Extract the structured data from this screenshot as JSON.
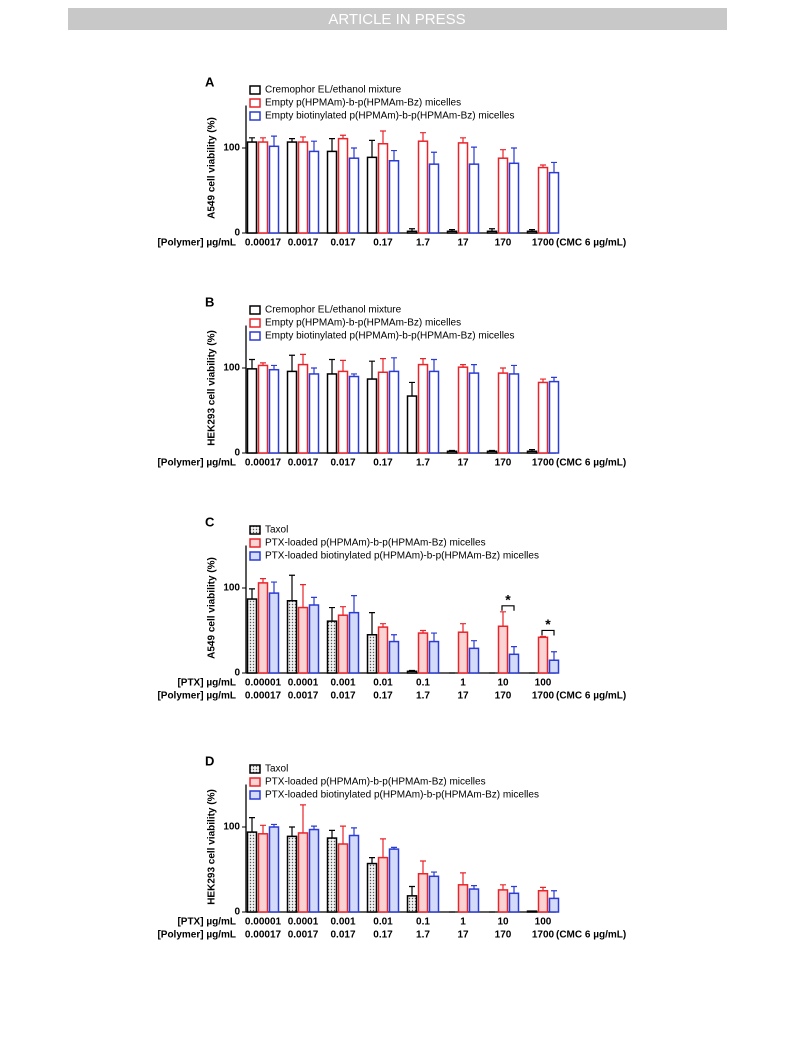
{
  "header": {
    "banner": "ARTICLE IN PRESS"
  },
  "chart_data": [
    {
      "type": "bar",
      "panel": "A",
      "ylabel": "A549 cell viability (%)",
      "ylim": [
        0,
        150
      ],
      "yticks": [
        0,
        100
      ],
      "x_label": "[Polymer] µg/mL",
      "categories": [
        "0.00017",
        "0.0017",
        "0.017",
        "0.17",
        "1.7",
        "17",
        "170",
        "1700"
      ],
      "x_note": "(CMC 6 µg/mL)",
      "series": [
        {
          "name": "Cremophor EL/ethanol mixture",
          "color": "#000000",
          "fill": "#ffffff",
          "values": [
            107,
            107,
            96,
            89,
            2,
            2,
            2,
            2
          ],
          "errors": [
            5,
            4,
            15,
            20,
            3,
            2,
            3,
            2
          ]
        },
        {
          "name": "Empty p(HPMAm)-b-p(HPMAm-Bz) micelles",
          "color": "#e8242b",
          "fill": "#ffffff",
          "values": [
            107,
            107,
            111,
            105,
            108,
            106,
            88,
            77
          ],
          "errors": [
            5,
            6,
            4,
            15,
            10,
            6,
            10,
            3
          ]
        },
        {
          "name": "Empty biotinylated p(HPMAm)-b-p(HPMAm-Bz) micelles",
          "color": "#2a3bd6",
          "fill": "#ffffff",
          "values": [
            102,
            96,
            88,
            85,
            81,
            81,
            82,
            71
          ],
          "errors": [
            12,
            12,
            12,
            12,
            14,
            20,
            18,
            12
          ]
        }
      ]
    },
    {
      "type": "bar",
      "panel": "B",
      "ylabel": "HEK293 cell viability (%)",
      "ylim": [
        0,
        150
      ],
      "yticks": [
        0,
        100
      ],
      "x_label": "[Polymer] µg/mL",
      "categories": [
        "0.00017",
        "0.0017",
        "0.017",
        "0.17",
        "1.7",
        "17",
        "170",
        "1700"
      ],
      "x_note": "(CMC 6 µg/mL)",
      "series": [
        {
          "name": "Cremophor EL/ethanol mixture",
          "color": "#000000",
          "fill": "#ffffff",
          "values": [
            99,
            96,
            93,
            87,
            67,
            2,
            2,
            2
          ],
          "errors": [
            11,
            19,
            17,
            21,
            16,
            1,
            1,
            2
          ]
        },
        {
          "name": "Empty p(HPMAm)-b-p(HPMAm-Bz) micelles",
          "color": "#e8242b",
          "fill": "#ffffff",
          "values": [
            103,
            104,
            96,
            95,
            104,
            101,
            94,
            83
          ],
          "errors": [
            3,
            12,
            13,
            16,
            7,
            3,
            6,
            4
          ]
        },
        {
          "name": "Empty biotinylated p(HPMAm)-b-p(HPMAm-Bz) micelles",
          "color": "#2a3bd6",
          "fill": "#ffffff",
          "values": [
            98,
            93,
            90,
            96,
            96,
            94,
            93,
            84
          ],
          "errors": [
            5,
            7,
            3,
            16,
            14,
            10,
            10,
            5
          ]
        }
      ]
    },
    {
      "type": "bar",
      "panel": "C",
      "ylabel": "A549 cell viability (%)",
      "ylim": [
        0,
        150
      ],
      "yticks": [
        0,
        100
      ],
      "ptx_label": "[PTX] µg/mL",
      "ptx_categories": [
        "0.00001",
        "0.0001",
        "0.001",
        "0.01",
        "0.1",
        "1",
        "10",
        "100"
      ],
      "x_label": "[Polymer] µg/mL",
      "categories": [
        "0.00017",
        "0.0017",
        "0.017",
        "0.17",
        "1.7",
        "17",
        "170",
        "1700"
      ],
      "x_note": "(CMC 6 µg/mL)",
      "annotations": [
        {
          "text": "*",
          "category": "170"
        },
        {
          "text": "*",
          "category": "1700"
        }
      ],
      "series": [
        {
          "name": "Taxol",
          "color": "#000000",
          "fill": "dots",
          "values": [
            87,
            85,
            61,
            45,
            2,
            0,
            0,
            0
          ],
          "errors": [
            12,
            30,
            16,
            26,
            1,
            0,
            0,
            0
          ]
        },
        {
          "name": "PTX-loaded p(HPMAm)-b-p(HPMAm-Bz) micelles",
          "color": "#e8242b",
          "fill": "#fbd3d3",
          "values": [
            106,
            77,
            68,
            54,
            47,
            48,
            55,
            42
          ],
          "errors": [
            5,
            27,
            10,
            4,
            3,
            10,
            17,
            1
          ]
        },
        {
          "name": "PTX-loaded biotinylated p(HPMAm)-b-p(HPMAm-Bz) micelles",
          "color": "#2a3bd6",
          "fill": "#d3dbf8",
          "values": [
            94,
            80,
            71,
            37,
            37,
            29,
            22,
            15
          ],
          "errors": [
            13,
            9,
            20,
            8,
            10,
            9,
            9,
            10
          ]
        }
      ]
    },
    {
      "type": "bar",
      "panel": "D",
      "ylabel": "HEK293 cell viability (%)",
      "ylim": [
        0,
        150
      ],
      "yticks": [
        0,
        100
      ],
      "ptx_label": "[PTX] µg/mL",
      "ptx_categories": [
        "0.00001",
        "0.0001",
        "0.001",
        "0.01",
        "0.1",
        "1",
        "10",
        "100"
      ],
      "x_label": "[Polymer] µg/mL",
      "categories": [
        "0.00017",
        "0.0017",
        "0.017",
        "0.17",
        "1.7",
        "17",
        "170",
        "1700"
      ],
      "x_note": "(CMC 6 µg/mL)",
      "series": [
        {
          "name": "Taxol",
          "color": "#000000",
          "fill": "dots",
          "values": [
            94,
            89,
            87,
            57,
            19,
            0,
            0,
            1
          ],
          "errors": [
            17,
            11,
            9,
            7,
            11,
            0,
            0,
            0
          ]
        },
        {
          "name": "PTX-loaded p(HPMAm)-b-p(HPMAm-Bz) micelles",
          "color": "#e8242b",
          "fill": "#fbd3d3",
          "values": [
            92,
            93,
            80,
            64,
            45,
            32,
            26,
            25
          ],
          "errors": [
            10,
            33,
            21,
            22,
            15,
            14,
            6,
            4
          ]
        },
        {
          "name": "PTX-loaded biotinylated p(HPMAm)-b-p(HPMAm-Bz) micelles",
          "color": "#2a3bd6",
          "fill": "#d3dbf8",
          "values": [
            100,
            97,
            90,
            74,
            42,
            27,
            22,
            16
          ],
          "errors": [
            3,
            4,
            9,
            2,
            5,
            4,
            8,
            9
          ]
        }
      ]
    }
  ]
}
